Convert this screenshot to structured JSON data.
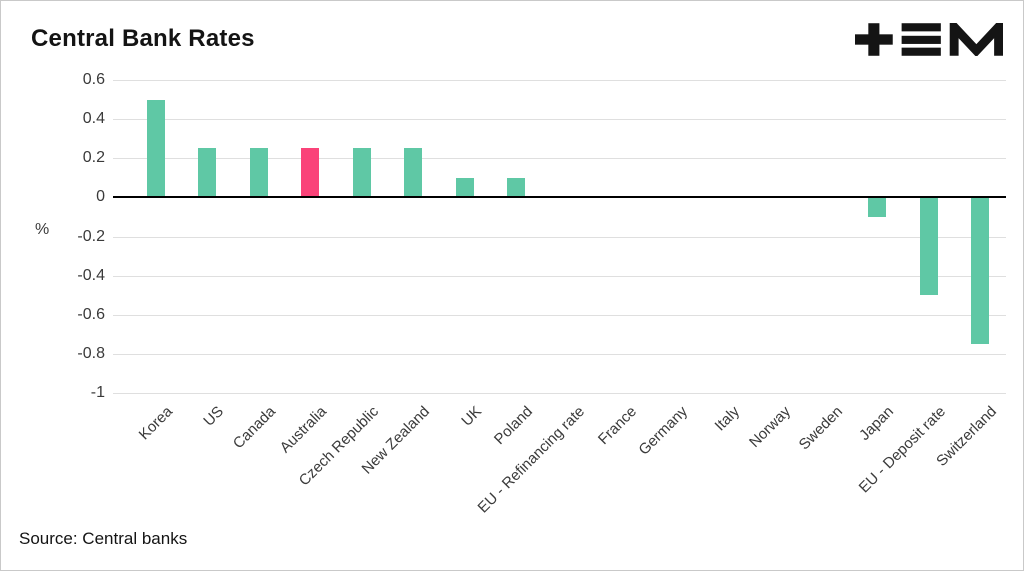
{
  "header": {
    "title": "Central Bank Rates",
    "logo": "tem-logo"
  },
  "footer": {
    "source": "Source: Central banks"
  },
  "chart_data": {
    "type": "bar",
    "title": "Central Bank Rates",
    "xlabel": "",
    "ylabel": "%",
    "ylim": [
      -1,
      0.6
    ],
    "ytick_labels": [
      "0.6",
      "0.4",
      "0.2",
      "0",
      "-0.2",
      "-0.4",
      "-0.6",
      "-0.8",
      "-1"
    ],
    "grid": true,
    "legend_position": "none",
    "categories": [
      "Korea",
      "US",
      "Canada",
      "Australia",
      "Czech Republic",
      "New Zealand",
      "UK",
      "Poland",
      "EU - Refinancing rate",
      "France",
      "Germany",
      "Italy",
      "Norway",
      "Sweden",
      "Japan",
      "EU - Deposit rate",
      "Switzerland"
    ],
    "values": [
      0.5,
      0.25,
      0.25,
      0.25,
      0.25,
      0.25,
      0.1,
      0.1,
      0,
      0,
      0,
      0,
      0,
      0,
      -0.1,
      -0.5,
      -0.75
    ],
    "highlight_index": 3,
    "highlight_category": "Australia",
    "bar_color": "#5fc8a5",
    "highlight_color": "#fa4379",
    "grid_color": "#dfdfdf",
    "zero_line_color": "#000000"
  }
}
